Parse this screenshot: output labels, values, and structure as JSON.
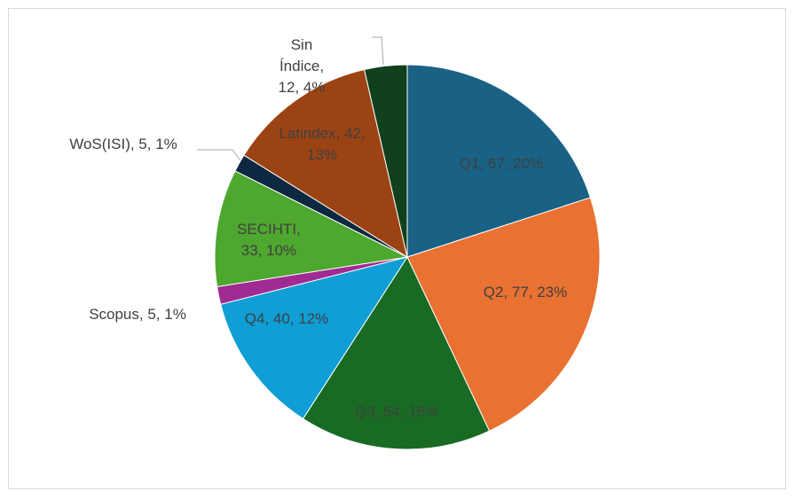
{
  "chart_data": {
    "type": "pie",
    "values": [
      67,
      77,
      54,
      40,
      5,
      33,
      5,
      42,
      12
    ],
    "value_labels": [
      "Q1, 67, 20%",
      "Q2, 77, 23%",
      "Q3, 54, 16%",
      "Q4, 40, 12%",
      "Scopus, 5, 1%",
      "SECIHTI, 33, 10%",
      "WoS(ISI), 5, 1%",
      "Latindex, 42, 13%",
      "Sin Índice, 12, 4%"
    ],
    "colors": [
      "#196185",
      "#e97132",
      "#196b24",
      "#0f9ed5",
      "#a02b93",
      "#4ea72e",
      "#0e2841",
      "#9c4313",
      "#10401c"
    ]
  }
}
